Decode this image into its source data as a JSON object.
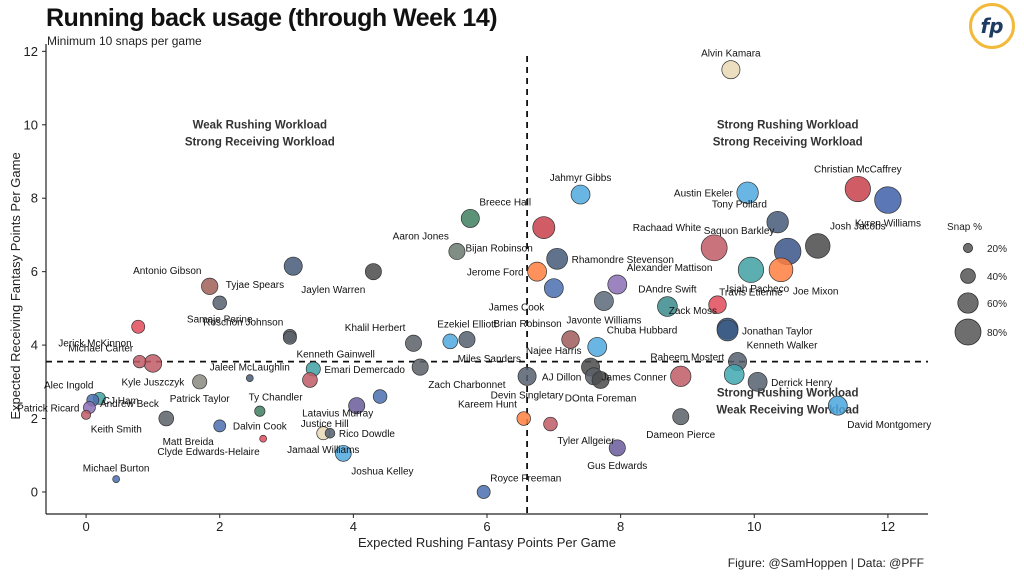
{
  "header": {
    "title": "Running back usage (through Week 14)",
    "subtitle": "Minimum 10 snaps per game",
    "logo_text": "fp",
    "caption": "Figure: @SamHoppen | Data: @PFF"
  },
  "chart_data": {
    "type": "scatter",
    "xlabel": "Expected Rushing Fantasy Points Per Game",
    "ylabel": "Expected Receiving Fantasy Points Per Game",
    "xlim": [
      -0.6,
      12.6
    ],
    "ylim": [
      -0.6,
      12.2
    ],
    "xticks": [
      0,
      2,
      4,
      6,
      8,
      10,
      12
    ],
    "yticks": [
      0,
      2,
      4,
      6,
      8,
      10,
      12
    ],
    "vline": 6.6,
    "hline": 3.55,
    "quadrant_labels": [
      {
        "lines": [
          "Weak Rushing Workload",
          "Strong Receiving Workload"
        ],
        "x": 2.6,
        "y": 9.9
      },
      {
        "lines": [
          "Strong Rushing Workload",
          "Strong Receiving Workload"
        ],
        "x": 10.5,
        "y": 9.9
      },
      {
        "lines": [
          "Strong Rushing Workload",
          "Weak Receiving Workload"
        ],
        "x": 10.5,
        "y": 2.6
      }
    ],
    "legend": {
      "title": "Snap %",
      "placement": "right",
      "entries": [
        {
          "label": "20%",
          "snap": 20
        },
        {
          "label": "40%",
          "snap": 40
        },
        {
          "label": "60%",
          "snap": 60
        },
        {
          "label": "80%",
          "snap": 80
        }
      ]
    },
    "points": [
      {
        "name": "Alvin Kamara",
        "x": 9.65,
        "y": 11.5,
        "snap": 52,
        "color": "#e8d9b5",
        "label_pos": "above"
      },
      {
        "name": "Christian McCaffrey",
        "x": 11.55,
        "y": 8.25,
        "snap": 78,
        "color": "#c8414b",
        "label_pos": "above"
      },
      {
        "name": "Kyren Williams",
        "x": 12.0,
        "y": 7.95,
        "snap": 82,
        "color": "#3f5fa8",
        "label_pos": "below"
      },
      {
        "name": "Austin Ekeler",
        "x": 9.9,
        "y": 8.15,
        "snap": 64,
        "color": "#4fa8de",
        "label_pos": "left"
      },
      {
        "name": "Tony Pollard",
        "x": 10.35,
        "y": 7.35,
        "snap": 64,
        "color": "#455a78",
        "label_pos": "upleft"
      },
      {
        "name": "Josh Jacobs",
        "x": 10.95,
        "y": 6.7,
        "snap": 75,
        "color": "#4a4a4a",
        "label_pos": "upright"
      },
      {
        "name": "Saquon Barkley",
        "x": 10.5,
        "y": 6.55,
        "snap": 82,
        "color": "#3a5588",
        "label_pos": "upleft"
      },
      {
        "name": "Rachaad White",
        "x": 9.4,
        "y": 6.65,
        "snap": 80,
        "color": "#c05a66",
        "label_pos": "upleft"
      },
      {
        "name": "Travis Etienne",
        "x": 9.95,
        "y": 6.05,
        "snap": 78,
        "color": "#3fa0a2",
        "label_pos": "below"
      },
      {
        "name": "Joe Mixon",
        "x": 10.4,
        "y": 6.05,
        "snap": 72,
        "color": "#ff7f40",
        "label_pos": "belowright"
      },
      {
        "name": "Isiah Pacheco",
        "x": 9.45,
        "y": 5.1,
        "snap": 50,
        "color": "#e04a5a",
        "label_pos": "upright"
      },
      {
        "name": "Zack Moss",
        "x": 9.6,
        "y": 4.45,
        "snap": 62,
        "color": "#3a5a85",
        "label_pos": "upleft"
      },
      {
        "name": "Jonathan Taylor",
        "x": 9.6,
        "y": 4.4,
        "snap": 62,
        "color": "#3a5a85",
        "label_pos": "right"
      },
      {
        "name": "Kenneth Walker",
        "x": 9.75,
        "y": 3.55,
        "snap": 52,
        "color": "#556070",
        "label_pos": "upright"
      },
      {
        "name": "Raheem Mostert",
        "x": 9.7,
        "y": 3.2,
        "snap": 58,
        "color": "#3fa8b0",
        "label_pos": "upleft"
      },
      {
        "name": "Derrick Henry",
        "x": 10.05,
        "y": 3.0,
        "snap": 55,
        "color": "#556070",
        "label_pos": "right"
      },
      {
        "name": "David Montgomery",
        "x": 11.25,
        "y": 2.35,
        "snap": 55,
        "color": "#4aa6de",
        "label_pos": "belowright"
      },
      {
        "name": "Dameon Pierce",
        "x": 8.9,
        "y": 2.05,
        "snap": 45,
        "color": "#5a6068",
        "label_pos": "below"
      },
      {
        "name": "James Conner",
        "x": 8.9,
        "y": 3.15,
        "snap": 60,
        "color": "#c05a66",
        "label_pos": "left"
      },
      {
        "name": "Gus Edwards",
        "x": 7.95,
        "y": 1.2,
        "snap": 45,
        "color": "#6a5a9a",
        "label_pos": "below"
      },
      {
        "name": "Jahmyr Gibbs",
        "x": 7.4,
        "y": 8.1,
        "snap": 55,
        "color": "#4fa8de",
        "label_pos": "above"
      },
      {
        "name": "Bijan Robinson",
        "x": 6.85,
        "y": 7.2,
        "snap": 66,
        "color": "#c8414b",
        "label_pos": "belowleft"
      },
      {
        "name": "Rhamondre Stevenson",
        "x": 7.05,
        "y": 6.35,
        "snap": 62,
        "color": "#455a78",
        "label_pos": "right"
      },
      {
        "name": "Jerome Ford",
        "x": 6.75,
        "y": 6.0,
        "snap": 55,
        "color": "#ff7f40",
        "label_pos": "left"
      },
      {
        "name": "James Cook",
        "x": 7.0,
        "y": 5.55,
        "snap": 55,
        "color": "#4a6fb0",
        "label_pos": "belowleft"
      },
      {
        "name": "Alexander Mattison",
        "x": 7.95,
        "y": 5.65,
        "snap": 55,
        "color": "#8a6fb5",
        "label_pos": "upright"
      },
      {
        "name": "Javonte Williams",
        "x": 7.75,
        "y": 5.2,
        "snap": 55,
        "color": "#5a6878",
        "label_pos": "below"
      },
      {
        "name": "DAndre Swift",
        "x": 8.7,
        "y": 5.05,
        "snap": 58,
        "color": "#3a8a8c",
        "label_pos": "above"
      },
      {
        "name": "Brian Robinson",
        "x": 7.25,
        "y": 4.15,
        "snap": 50,
        "color": "#a05a5a",
        "label_pos": "upleft"
      },
      {
        "name": "Chuba Hubbard",
        "x": 7.65,
        "y": 3.95,
        "snap": 55,
        "color": "#4fa8de",
        "label_pos": "upright"
      },
      {
        "name": "Najee Harris",
        "x": 7.55,
        "y": 3.4,
        "snap": 52,
        "color": "#4a4a4a",
        "label_pos": "upleft"
      },
      {
        "name": "AJ Dillon",
        "x": 7.6,
        "y": 3.15,
        "snap": 48,
        "color": "#5a6068",
        "label_pos": "left"
      },
      {
        "name": "DOnta Foreman",
        "x": 7.7,
        "y": 3.05,
        "snap": 48,
        "color": "#4a4a4a",
        "label_pos": "below"
      },
      {
        "name": "Devin Singletary",
        "x": 6.6,
        "y": 3.15,
        "snap": 52,
        "color": "#556070",
        "label_pos": "below"
      },
      {
        "name": "Kareem Hunt",
        "x": 6.55,
        "y": 2.0,
        "snap": 36,
        "color": "#ff7f40",
        "label_pos": "upleft"
      },
      {
        "name": "Tyler Allgeier",
        "x": 6.95,
        "y": 1.85,
        "snap": 36,
        "color": "#c05a66",
        "label_pos": "belowright"
      },
      {
        "name": "Royce Freeman",
        "x": 5.95,
        "y": 0.0,
        "snap": 34,
        "color": "#4a6fb0",
        "label_pos": "upright"
      },
      {
        "name": "Breece Hall",
        "x": 5.75,
        "y": 7.45,
        "snap": 52,
        "color": "#3f7f60",
        "label_pos": "upright"
      },
      {
        "name": "Aaron Jones",
        "x": 5.55,
        "y": 6.55,
        "snap": 45,
        "color": "#6a7a70",
        "label_pos": "upleft"
      },
      {
        "name": "Jaylen Warren",
        "x": 4.3,
        "y": 6.0,
        "snap": 45,
        "color": "#4a4a4a",
        "label_pos": "belowleft"
      },
      {
        "name": "Tyjae Spears",
        "x": 3.1,
        "y": 6.15,
        "snap": 52,
        "color": "#455a78",
        "label_pos": "belowleft"
      },
      {
        "name": "Antonio Gibson",
        "x": 1.85,
        "y": 5.6,
        "snap": 46,
        "color": "#a06058",
        "label_pos": "upleft"
      },
      {
        "name": "Samaje Perine",
        "x": 2.0,
        "y": 5.15,
        "snap": 36,
        "color": "#556070",
        "label_pos": "below"
      },
      {
        "name": "Roschon Johnson",
        "x": 3.05,
        "y": 4.25,
        "snap": 34,
        "color": "#5a6068",
        "label_pos": "upleft"
      },
      {
        "name": "Kenneth Gainwell",
        "x": 3.05,
        "y": 4.2,
        "snap": 34,
        "color": "#5a6068",
        "label_pos": "belowright"
      },
      {
        "name": "Khalil Herbert",
        "x": 4.9,
        "y": 4.05,
        "snap": 45,
        "color": "#5a6068",
        "label_pos": "upleft"
      },
      {
        "name": "Ezekiel Elliott",
        "x": 5.7,
        "y": 4.15,
        "snap": 45,
        "color": "#556070",
        "label_pos": "above"
      },
      {
        "name": "Miles Sanders",
        "x": 5.45,
        "y": 4.1,
        "snap": 40,
        "color": "#4fa8de",
        "label_pos": "belowright"
      },
      {
        "name": "Zach Charbonnet",
        "x": 5.0,
        "y": 3.4,
        "snap": 45,
        "color": "#5a6068",
        "label_pos": "belowright"
      },
      {
        "name": "Latavius Murray",
        "x": 4.4,
        "y": 2.6,
        "snap": 36,
        "color": "#4a6fb0",
        "label_pos": "belowleft"
      },
      {
        "name": "Justice Hill",
        "x": 4.05,
        "y": 2.35,
        "snap": 45,
        "color": "#6a5a9a",
        "label_pos": "belowleft"
      },
      {
        "name": "Emari Demercado",
        "x": 3.4,
        "y": 3.35,
        "snap": 38,
        "color": "#3fa0a2",
        "label_pos": "right"
      },
      {
        "name": "Ty Chandler",
        "x": 3.35,
        "y": 3.05,
        "snap": 40,
        "color": "#c05a66",
        "label_pos": "belowleft"
      },
      {
        "name": "Jaleel McLaughlin",
        "x": 2.45,
        "y": 3.1,
        "snap": 12,
        "color": "#455a78",
        "label_pos": "above"
      },
      {
        "name": "Patrick Taylor",
        "x": 1.7,
        "y": 3.0,
        "snap": 38,
        "color": "#8a8a80",
        "label_pos": "below"
      },
      {
        "name": "Kyle Juszczyk",
        "x": 1.0,
        "y": 3.5,
        "snap": 50,
        "color": "#c05a66",
        "label_pos": "below"
      },
      {
        "name": "Michael Carter",
        "x": 0.8,
        "y": 3.55,
        "snap": 32,
        "color": "#c05a66",
        "label_pos": "upleft"
      },
      {
        "name": "Jerick McKinnon",
        "x": 0.78,
        "y": 4.5,
        "snap": 34,
        "color": "#e04a5a",
        "label_pos": "belowleft"
      },
      {
        "name": "Alec Ingold",
        "x": 0.2,
        "y": 2.55,
        "snap": 30,
        "color": "#3fa0a2",
        "label_pos": "upleft"
      },
      {
        "name": "CJ Ham",
        "x": 0.1,
        "y": 2.5,
        "snap": 30,
        "color": "#4a6fb0",
        "label_pos": "right"
      },
      {
        "name": "Patrick Ricard",
        "x": 0.05,
        "y": 2.3,
        "snap": 30,
        "color": "#8a6fb5",
        "label_pos": "left"
      },
      {
        "name": "Keith Smith",
        "x": 0.0,
        "y": 2.1,
        "snap": 20,
        "color": "#c05a66",
        "label_pos": "belowright"
      },
      {
        "name": "Andrew Beck",
        "x": 1.2,
        "y": 2.0,
        "snap": 40,
        "color": "#5a6068",
        "label_pos": "upleft"
      },
      {
        "name": "Matt Breida",
        "x": 2.0,
        "y": 1.8,
        "snap": 30,
        "color": "#4a6fb0",
        "label_pos": "belowleft"
      },
      {
        "name": "Dalvin Cook",
        "x": 2.6,
        "y": 2.2,
        "snap": 24,
        "color": "#3f7f60",
        "label_pos": "below"
      },
      {
        "name": "Clyde Edwards-Helaire",
        "x": 2.65,
        "y": 1.45,
        "snap": 12,
        "color": "#e04a5a",
        "label_pos": "belowleft"
      },
      {
        "name": "Jamaal Williams",
        "x": 3.55,
        "y": 1.6,
        "snap": 34,
        "color": "#e8d9b5",
        "label_pos": "below"
      },
      {
        "name": "Rico Dowdle",
        "x": 3.65,
        "y": 1.6,
        "snap": 22,
        "color": "#556070",
        "label_pos": "right"
      },
      {
        "name": "Joshua Kelley",
        "x": 3.85,
        "y": 1.05,
        "snap": 44,
        "color": "#4fa8de",
        "label_pos": "belowright"
      },
      {
        "name": "Michael Burton",
        "x": 0.45,
        "y": 0.35,
        "snap": 12,
        "color": "#4a6fb0",
        "label_pos": "above"
      }
    ]
  }
}
